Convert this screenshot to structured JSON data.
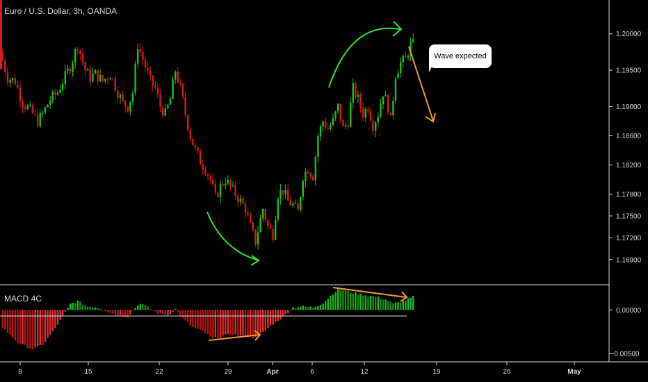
{
  "header": {
    "title": "Euro / U.S. Dollar, 3h, OANDA"
  },
  "macd": {
    "title": "MACD 4C"
  },
  "annotation": {
    "text": "Wave expected"
  },
  "colors": {
    "up": "#19c419",
    "down": "#d81a1a",
    "macd_up": "#1fb81f",
    "macd_down": "#b31414",
    "arrow_green": "#2ee62e",
    "arrow_orange": "#f39c2f",
    "grid_line": "#d9d9d9"
  },
  "chart_data": [
    {
      "type": "candlestick",
      "title": "Euro / U.S. Dollar, 3h, OANDA",
      "ylim": [
        1.1665,
        1.2035
      ],
      "y_ticks": [
        "1.20000",
        "1.19500",
        "1.19000",
        "1.18600",
        "1.18200",
        "1.17800",
        "1.17500",
        "1.17200",
        "1.16900"
      ],
      "x_ticks": [
        "8",
        "15",
        "22",
        "29",
        "Apr",
        "6",
        "12",
        "19",
        "26",
        "May"
      ],
      "path": [
        [
          0,
          1.1975
        ],
        [
          3,
          1.194
        ],
        [
          6,
          1.1935
        ],
        [
          9,
          1.1905
        ],
        [
          12,
          1.1895
        ],
        [
          15,
          1.188
        ],
        [
          17,
          1.189
        ],
        [
          20,
          1.191
        ],
        [
          23,
          1.192
        ],
        [
          25,
          1.1935
        ],
        [
          28,
          1.1955
        ],
        [
          31,
          1.1985
        ],
        [
          34,
          1.195
        ],
        [
          36,
          1.194
        ],
        [
          38,
          1.1945
        ],
        [
          41,
          1.1935
        ],
        [
          44,
          1.1945
        ],
        [
          47,
          1.192
        ],
        [
          49,
          1.1905
        ],
        [
          51,
          1.19
        ],
        [
          53,
          1.192
        ],
        [
          55,
          1.1985
        ],
        [
          57,
          1.1965
        ],
        [
          60,
          1.1935
        ],
        [
          62,
          1.1925
        ],
        [
          64,
          1.19
        ],
        [
          66,
          1.189
        ],
        [
          68,
          1.191
        ],
        [
          70,
          1.195
        ],
        [
          72,
          1.1925
        ],
        [
          74,
          1.189
        ],
        [
          76,
          1.186
        ],
        [
          78,
          1.184
        ],
        [
          80,
          1.1825
        ],
        [
          82,
          1.1815
        ],
        [
          84,
          1.18
        ],
        [
          86,
          1.1775
        ],
        [
          88,
          1.179
        ],
        [
          90,
          1.18
        ],
        [
          92,
          1.179
        ],
        [
          94,
          1.178
        ],
        [
          96,
          1.177
        ],
        [
          98,
          1.176
        ],
        [
          100,
          1.1735
        ],
        [
          102,
          1.1715
        ],
        [
          104,
          1.1745
        ],
        [
          105,
          1.176
        ],
        [
          107,
          1.1735
        ],
        [
          109,
          1.1725
        ],
        [
          111,
          1.178
        ],
        [
          113,
          1.1785
        ],
        [
          115,
          1.177
        ],
        [
          117,
          1.1765
        ],
        [
          119,
          1.1755
        ],
        [
          121,
          1.1805
        ],
        [
          123,
          1.1815
        ],
        [
          125,
          1.1805
        ],
        [
          127,
          1.186
        ],
        [
          129,
          1.188
        ],
        [
          131,
          1.187
        ],
        [
          133,
          1.188
        ],
        [
          135,
          1.19
        ],
        [
          137,
          1.187
        ],
        [
          139,
          1.188
        ],
        [
          141,
          1.1925
        ],
        [
          143,
          1.191
        ],
        [
          145,
          1.189
        ],
        [
          147,
          1.19
        ],
        [
          149,
          1.1875
        ],
        [
          151,
          1.189
        ],
        [
          153,
          1.192
        ],
        [
          155,
          1.19
        ],
        [
          156,
          1.188
        ],
        [
          158,
          1.1945
        ],
        [
          160,
          1.196
        ],
        [
          162,
          1.1965
        ],
        [
          164,
          1.1985
        ]
      ]
    },
    {
      "type": "histogram",
      "title": "MACD 4C",
      "ylim": [
        -0.0055,
        0.0025
      ],
      "y_ticks": [
        "0.00000",
        "-0.00500"
      ],
      "path": [
        [
          0,
          -0.002
        ],
        [
          6,
          -0.0038
        ],
        [
          12,
          -0.0045
        ],
        [
          16,
          -0.004
        ],
        [
          20,
          -0.0025
        ],
        [
          24,
          -0.0008
        ],
        [
          27,
          0.0007
        ],
        [
          30,
          0.001
        ],
        [
          34,
          0.0004
        ],
        [
          38,
          0.0003
        ],
        [
          42,
          -0.0002
        ],
        [
          46,
          -0.0006
        ],
        [
          50,
          -0.0008
        ],
        [
          53,
          0.0003
        ],
        [
          55,
          0.0008
        ],
        [
          58,
          0.0003
        ],
        [
          62,
          -0.0004
        ],
        [
          66,
          -0.0006
        ],
        [
          69,
          0.0001
        ],
        [
          72,
          -0.001
        ],
        [
          76,
          -0.002
        ],
        [
          80,
          -0.0025
        ],
        [
          84,
          -0.0033
        ],
        [
          88,
          -0.003
        ],
        [
          92,
          -0.0028
        ],
        [
          96,
          -0.003
        ],
        [
          100,
          -0.0032
        ],
        [
          104,
          -0.0026
        ],
        [
          108,
          -0.0016
        ],
        [
          112,
          -0.0008
        ],
        [
          116,
          0.0003
        ],
        [
          120,
          0.0004
        ],
        [
          124,
          0.0003
        ],
        [
          128,
          0.0008
        ],
        [
          131,
          0.0016
        ],
        [
          134,
          0.0024
        ],
        [
          137,
          0.0022
        ],
        [
          141,
          0.0019
        ],
        [
          145,
          0.0017
        ],
        [
          149,
          0.0015
        ],
        [
          153,
          0.0012
        ],
        [
          156,
          0.0007
        ],
        [
          160,
          0.001
        ],
        [
          164,
          0.0015
        ]
      ]
    }
  ]
}
